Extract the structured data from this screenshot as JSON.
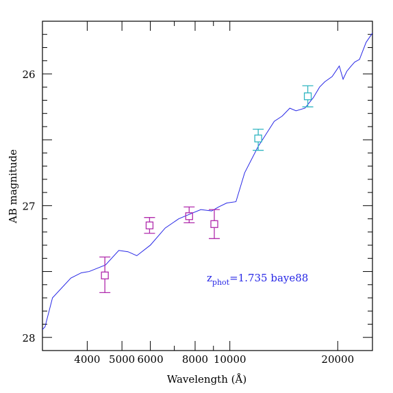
{
  "chart_data": {
    "type": "line",
    "title": "",
    "xlabel": "Wavelength (Å)",
    "ylabel": "AB magnitude",
    "xscale": "log",
    "xlim": [
      3000,
      25000
    ],
    "ylim": [
      28.1,
      25.6
    ],
    "y_inverted": true,
    "grid": false,
    "x_tick_labels": [
      {
        "value": 4000,
        "label": "4000"
      },
      {
        "value": 5000,
        "label": "5000"
      },
      {
        "value": 6000,
        "label": "6000"
      },
      {
        "value": 8000,
        "label": "8000"
      },
      {
        "value": 10000,
        "label": "10000"
      },
      {
        "value": 20000,
        "label": "20000"
      }
    ],
    "y_tick_labels": [
      {
        "value": 26,
        "label": "26"
      },
      {
        "value": 27,
        "label": "27"
      },
      {
        "value": 28,
        "label": "28"
      }
    ],
    "series": [
      {
        "type": "line",
        "color": "#2626e6",
        "x": [
          3000,
          3050,
          3200,
          3600,
          3850,
          4050,
          4500,
          4900,
          5200,
          5500,
          6000,
          6600,
          7200,
          7800,
          8300,
          8900,
          9300,
          9800,
          10400,
          11000,
          12000,
          12600,
          13300,
          14000,
          14700,
          15300,
          16200,
          17100,
          17800,
          18400,
          19300,
          20200,
          20700,
          21200,
          21800,
          22300,
          23000,
          24000,
          25000
        ],
        "y": [
          27.94,
          27.92,
          27.7,
          27.55,
          27.51,
          27.5,
          27.45,
          27.34,
          27.35,
          27.38,
          27.3,
          27.17,
          27.1,
          27.06,
          27.03,
          27.04,
          27.01,
          26.98,
          26.97,
          26.75,
          26.55,
          26.46,
          26.36,
          26.32,
          26.26,
          26.28,
          26.26,
          26.18,
          26.1,
          26.06,
          26.02,
          25.94,
          26.04,
          25.98,
          25.94,
          25.91,
          25.89,
          25.76,
          25.69
        ]
      },
      {
        "type": "errorbar",
        "color": "#b02aac",
        "marker": "square",
        "points": [
          {
            "x": 4480,
            "y": 27.53,
            "err_low": 27.66,
            "err_high": 27.39
          },
          {
            "x": 5970,
            "y": 27.15,
            "err_low": 27.21,
            "err_high": 27.09
          },
          {
            "x": 7700,
            "y": 27.08,
            "err_low": 27.13,
            "err_high": 27.01
          },
          {
            "x": 9050,
            "y": 27.14,
            "err_low": 27.25,
            "err_high": 27.03
          }
        ]
      },
      {
        "type": "errorbar",
        "color": "#2fb5c0",
        "marker": "square",
        "points": [
          {
            "x": 12000,
            "y": 26.49,
            "err_low": 26.58,
            "err_high": 26.42
          },
          {
            "x": 16500,
            "y": 26.17,
            "err_low": 26.25,
            "err_high": 26.09
          }
        ]
      }
    ],
    "annotation": {
      "z": "z",
      "sub": "phot",
      "text": "=1.735 baye88"
    }
  }
}
